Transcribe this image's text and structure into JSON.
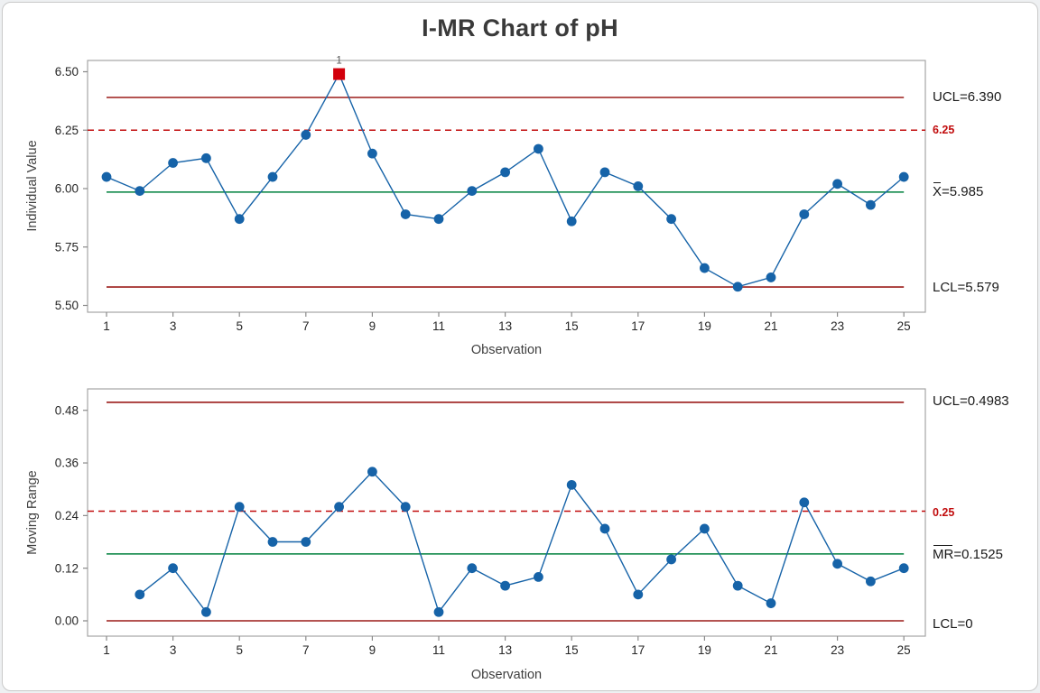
{
  "title": "I-MR Chart of pH",
  "colors": {
    "series": "#1663a8",
    "center_line": "#00813d",
    "limit_line": "#9b1b19",
    "ref_line": "#c10c0d",
    "ooc_marker": "#d2000c",
    "ooc_flag_text": "#555555",
    "tick": "#8a8a8a",
    "tick_text": "#262626",
    "panel_border": "#a5a5a5"
  },
  "chart_data": [
    {
      "type": "line",
      "name": "individuals",
      "ylabel": "Individual Value",
      "xlabel": "Observation",
      "x": [
        1,
        2,
        3,
        4,
        5,
        6,
        7,
        8,
        9,
        10,
        11,
        12,
        13,
        14,
        15,
        16,
        17,
        18,
        19,
        20,
        21,
        22,
        23,
        24,
        25
      ],
      "values": [
        6.05,
        5.99,
        6.11,
        6.13,
        5.87,
        6.05,
        6.23,
        6.49,
        6.15,
        5.89,
        5.87,
        5.99,
        6.07,
        6.17,
        5.86,
        6.07,
        6.01,
        5.87,
        5.66,
        5.58,
        5.62,
        5.89,
        6.02,
        5.93,
        6.05
      ],
      "center": 5.985,
      "ucl": 6.39,
      "lcl": 5.579,
      "ref": 6.25,
      "limit_span": [
        1,
        25
      ],
      "ylim": [
        5.471,
        6.548
      ],
      "ytick_values": [
        6.5,
        6.25,
        6.0,
        5.75,
        5.5
      ],
      "ytick_labels": [
        "6.50",
        "6.25",
        "6.00",
        "5.75",
        "5.50"
      ],
      "xtick_values": [
        1,
        3,
        5,
        7,
        9,
        11,
        13,
        15,
        17,
        19,
        21,
        23,
        25
      ],
      "xtick_labels": [
        "1",
        "3",
        "5",
        "7",
        "9",
        "11",
        "13",
        "15",
        "17",
        "19",
        "21",
        "23",
        "25"
      ],
      "flags": [
        {
          "x": 8,
          "label": "1"
        }
      ],
      "right_labels": {
        "ucl": "UCL=6.390",
        "ref": "6.25",
        "center_bar": "X",
        "center_rest": "=5.985",
        "lcl": "LCL=5.579"
      }
    },
    {
      "type": "line",
      "name": "moving_range",
      "ylabel": "Moving Range",
      "xlabel": "Observation",
      "x": [
        2,
        3,
        4,
        5,
        6,
        7,
        8,
        9,
        10,
        11,
        12,
        13,
        14,
        15,
        16,
        17,
        18,
        19,
        20,
        21,
        22,
        23,
        24,
        25
      ],
      "values": [
        0.06,
        0.12,
        0.02,
        0.26,
        0.18,
        0.18,
        0.26,
        0.34,
        0.26,
        0.02,
        0.12,
        0.08,
        0.1,
        0.31,
        0.21,
        0.06,
        0.14,
        0.21,
        0.08,
        0.04,
        0.27,
        0.13,
        0.09,
        0.12
      ],
      "center": 0.1525,
      "ucl": 0.4983,
      "lcl": 0,
      "ref": 0.25,
      "limit_span": [
        1,
        25
      ],
      "ylim": [
        -0.035,
        0.529
      ],
      "ytick_values": [
        0.48,
        0.36,
        0.24,
        0.12,
        0.0
      ],
      "ytick_labels": [
        "0.48",
        "0.36",
        "0.24",
        "0.12",
        "0.00"
      ],
      "xtick_values": [
        1,
        3,
        5,
        7,
        9,
        11,
        13,
        15,
        17,
        19,
        21,
        23,
        25
      ],
      "xtick_labels": [
        "1",
        "3",
        "5",
        "7",
        "9",
        "11",
        "13",
        "15",
        "17",
        "19",
        "21",
        "23",
        "25"
      ],
      "flags": [],
      "right_labels": {
        "ucl": "UCL=0.4983",
        "ref": "0.25",
        "center_bar": "MR",
        "center_rest": "=0.1525",
        "lcl": "LCL=0"
      }
    }
  ]
}
